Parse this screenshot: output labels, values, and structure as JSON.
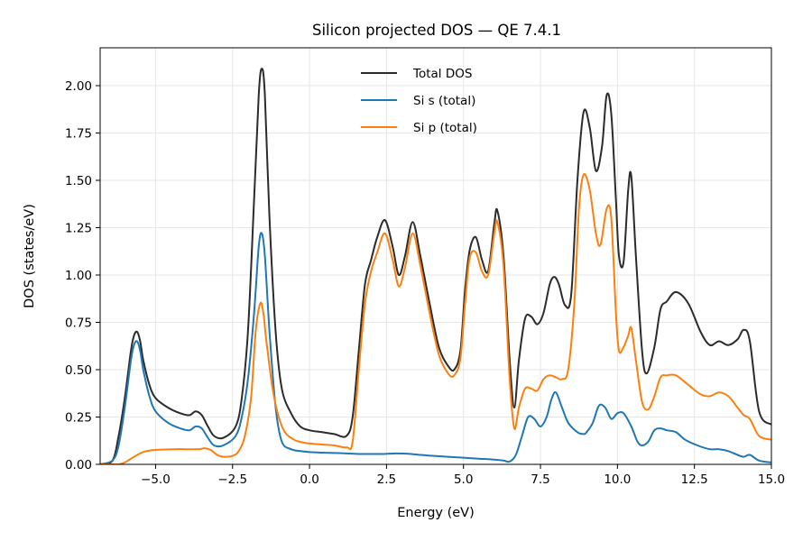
{
  "chart_data": {
    "type": "line",
    "title": "Silicon projected DOS — QE 7.4.1",
    "xlabel": "Energy (eV)",
    "ylabel": "DOS (states/eV)",
    "xlim": [
      -6.8,
      15.0
    ],
    "ylim": [
      0.0,
      2.2
    ],
    "xticks": [
      -5.0,
      -2.5,
      0.0,
      2.5,
      5.0,
      7.5,
      10.0,
      12.5,
      15.0
    ],
    "xtick_labels": [
      "−5.0",
      "−2.5",
      "0.0",
      "2.5",
      "5.0",
      "7.5",
      "10.0",
      "12.5",
      "15.0"
    ],
    "yticks": [
      0.0,
      0.25,
      0.5,
      0.75,
      1.0,
      1.25,
      1.5,
      1.75,
      2.0
    ],
    "ytick_labels": [
      "0.00",
      "0.25",
      "0.50",
      "0.75",
      "1.00",
      "1.25",
      "1.50",
      "1.75",
      "2.00"
    ],
    "grid": true,
    "legend_position": "top-center",
    "series": [
      {
        "name": "Total DOS",
        "color": "#2b2b2b",
        "x": [
          -6.8,
          -6.4,
          -6.2,
          -6.0,
          -5.8,
          -5.7,
          -5.6,
          -5.5,
          -5.4,
          -5.2,
          -5.0,
          -4.6,
          -4.2,
          -3.9,
          -3.7,
          -3.5,
          -3.3,
          -3.1,
          -2.8,
          -2.4,
          -2.2,
          -2.0,
          -1.8,
          -1.65,
          -1.55,
          -1.45,
          -1.3,
          -1.1,
          -0.9,
          -0.6,
          -0.3,
          0.0,
          0.4,
          0.8,
          1.2,
          1.4,
          1.6,
          1.8,
          2.0,
          2.2,
          2.45,
          2.7,
          2.9,
          3.1,
          3.35,
          3.6,
          3.9,
          4.2,
          4.5,
          4.7,
          4.9,
          5.05,
          5.2,
          5.4,
          5.6,
          5.8,
          6.0,
          6.1,
          6.3,
          6.5,
          6.65,
          6.8,
          7.0,
          7.2,
          7.4,
          7.6,
          7.8,
          7.95,
          8.1,
          8.3,
          8.5,
          8.7,
          8.9,
          9.1,
          9.3,
          9.5,
          9.65,
          9.8,
          9.95,
          10.05,
          10.2,
          10.35,
          10.45,
          10.6,
          10.8,
          10.95,
          11.2,
          11.4,
          11.6,
          11.9,
          12.3,
          12.7,
          13.0,
          13.3,
          13.6,
          13.9,
          14.1,
          14.3,
          14.6,
          15.0
        ],
        "y": [
          0.0,
          0.02,
          0.15,
          0.35,
          0.6,
          0.68,
          0.7,
          0.65,
          0.55,
          0.42,
          0.35,
          0.3,
          0.27,
          0.26,
          0.28,
          0.26,
          0.2,
          0.15,
          0.14,
          0.2,
          0.35,
          0.7,
          1.4,
          1.95,
          2.09,
          1.95,
          1.3,
          0.7,
          0.4,
          0.27,
          0.2,
          0.18,
          0.17,
          0.16,
          0.15,
          0.25,
          0.6,
          0.95,
          1.08,
          1.2,
          1.29,
          1.15,
          1.0,
          1.1,
          1.28,
          1.1,
          0.85,
          0.62,
          0.52,
          0.5,
          0.6,
          0.92,
          1.13,
          1.2,
          1.08,
          1.02,
          1.27,
          1.34,
          1.1,
          0.55,
          0.3,
          0.55,
          0.77,
          0.78,
          0.74,
          0.8,
          0.95,
          0.99,
          0.95,
          0.84,
          0.9,
          1.5,
          1.86,
          1.78,
          1.55,
          1.68,
          1.95,
          1.85,
          1.4,
          1.1,
          1.07,
          1.45,
          1.52,
          1.1,
          0.6,
          0.48,
          0.62,
          0.82,
          0.86,
          0.91,
          0.85,
          0.7,
          0.63,
          0.65,
          0.63,
          0.66,
          0.71,
          0.65,
          0.28,
          0.21
        ]
      },
      {
        "name": "Si s (total)",
        "color": "#1f77b4",
        "x": [
          -6.8,
          -6.4,
          -6.2,
          -6.0,
          -5.8,
          -5.7,
          -5.6,
          -5.5,
          -5.4,
          -5.2,
          -5.0,
          -4.6,
          -4.2,
          -3.9,
          -3.7,
          -3.5,
          -3.3,
          -3.1,
          -2.8,
          -2.4,
          -2.2,
          -2.0,
          -1.8,
          -1.65,
          -1.55,
          -1.45,
          -1.3,
          -1.1,
          -0.9,
          -0.6,
          -0.3,
          0.0,
          0.4,
          0.8,
          1.2,
          1.6,
          2.0,
          2.4,
          2.8,
          3.2,
          3.6,
          4.0,
          4.5,
          5.0,
          5.5,
          6.0,
          6.3,
          6.5,
          6.7,
          6.9,
          7.1,
          7.3,
          7.5,
          7.7,
          7.85,
          8.0,
          8.2,
          8.4,
          8.7,
          8.9,
          9.0,
          9.2,
          9.4,
          9.6,
          9.8,
          10.0,
          10.2,
          10.45,
          10.65,
          10.8,
          11.0,
          11.2,
          11.4,
          11.6,
          11.9,
          12.2,
          12.6,
          13.0,
          13.3,
          13.6,
          13.9,
          14.1,
          14.3,
          14.6,
          15.0
        ],
        "y": [
          0.0,
          0.02,
          0.1,
          0.3,
          0.55,
          0.63,
          0.65,
          0.6,
          0.5,
          0.36,
          0.28,
          0.22,
          0.19,
          0.18,
          0.2,
          0.19,
          0.14,
          0.1,
          0.1,
          0.15,
          0.25,
          0.45,
          0.8,
          1.15,
          1.22,
          1.1,
          0.7,
          0.3,
          0.12,
          0.08,
          0.07,
          0.065,
          0.062,
          0.06,
          0.058,
          0.055,
          0.055,
          0.055,
          0.058,
          0.056,
          0.05,
          0.045,
          0.04,
          0.035,
          0.03,
          0.025,
          0.02,
          0.015,
          0.05,
          0.15,
          0.25,
          0.24,
          0.2,
          0.25,
          0.34,
          0.38,
          0.3,
          0.22,
          0.17,
          0.16,
          0.17,
          0.22,
          0.31,
          0.3,
          0.24,
          0.27,
          0.27,
          0.2,
          0.12,
          0.1,
          0.12,
          0.18,
          0.19,
          0.18,
          0.17,
          0.13,
          0.1,
          0.08,
          0.08,
          0.07,
          0.05,
          0.04,
          0.05,
          0.02,
          0.01
        ]
      },
      {
        "name": "Si p (total)",
        "color": "#ff7f0e",
        "x": [
          -6.8,
          -6.4,
          -6.2,
          -6.0,
          -5.7,
          -5.4,
          -5.1,
          -4.8,
          -4.4,
          -4.0,
          -3.6,
          -3.4,
          -3.2,
          -3.0,
          -2.8,
          -2.5,
          -2.3,
          -2.1,
          -1.9,
          -1.75,
          -1.6,
          -1.5,
          -1.4,
          -1.2,
          -1.0,
          -0.8,
          -0.5,
          -0.2,
          0.0,
          0.4,
          0.8,
          1.2,
          1.4,
          1.6,
          1.8,
          2.0,
          2.2,
          2.45,
          2.7,
          2.9,
          3.1,
          3.35,
          3.6,
          3.9,
          4.2,
          4.5,
          4.7,
          4.9,
          5.05,
          5.2,
          5.4,
          5.6,
          5.8,
          6.0,
          6.1,
          6.3,
          6.5,
          6.65,
          6.8,
          7.0,
          7.2,
          7.4,
          7.6,
          7.8,
          8.0,
          8.2,
          8.4,
          8.6,
          8.75,
          8.9,
          9.1,
          9.3,
          9.45,
          9.65,
          9.8,
          9.95,
          10.05,
          10.2,
          10.35,
          10.45,
          10.6,
          10.8,
          11.0,
          11.2,
          11.4,
          11.6,
          11.9,
          12.3,
          12.7,
          13.0,
          13.3,
          13.6,
          13.9,
          14.1,
          14.3,
          14.6,
          15.0
        ],
        "y": [
          0.0,
          0.0,
          0.0,
          0.01,
          0.04,
          0.065,
          0.075,
          0.078,
          0.08,
          0.08,
          0.08,
          0.085,
          0.075,
          0.05,
          0.04,
          0.045,
          0.07,
          0.15,
          0.35,
          0.7,
          0.85,
          0.8,
          0.65,
          0.4,
          0.25,
          0.17,
          0.13,
          0.115,
          0.11,
          0.105,
          0.1,
          0.09,
          0.12,
          0.5,
          0.85,
          1.02,
          1.12,
          1.22,
          1.08,
          0.94,
          1.04,
          1.22,
          1.05,
          0.8,
          0.58,
          0.48,
          0.47,
          0.56,
          0.85,
          1.09,
          1.12,
          1.02,
          1.0,
          1.22,
          1.28,
          1.05,
          0.45,
          0.19,
          0.3,
          0.4,
          0.4,
          0.39,
          0.45,
          0.47,
          0.46,
          0.45,
          0.5,
          0.85,
          1.35,
          1.53,
          1.45,
          1.22,
          1.16,
          1.35,
          1.3,
          0.8,
          0.6,
          0.62,
          0.68,
          0.72,
          0.55,
          0.33,
          0.29,
          0.36,
          0.46,
          0.47,
          0.47,
          0.42,
          0.37,
          0.36,
          0.38,
          0.36,
          0.3,
          0.26,
          0.24,
          0.15,
          0.13
        ]
      }
    ]
  }
}
